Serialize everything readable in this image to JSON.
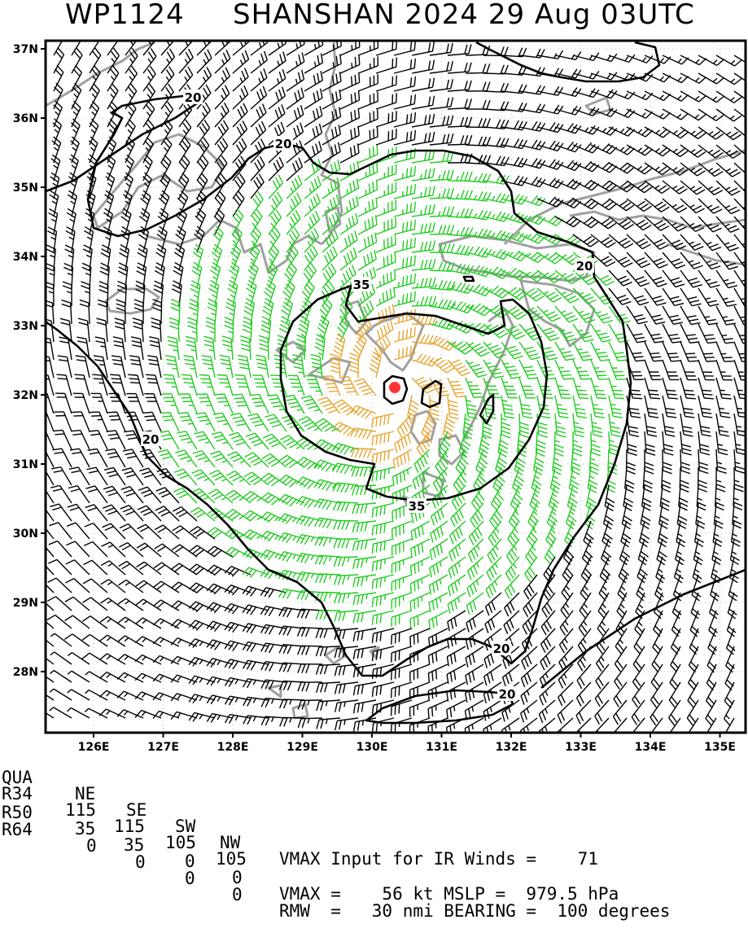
{
  "title": {
    "storm_id": "WP1124",
    "storm_line": "SHANSHAN 2024 29 Aug 03UTC"
  },
  "map": {
    "lat_labels": [
      "37N",
      "36N",
      "35N",
      "34N",
      "33N",
      "32N",
      "31N",
      "30N",
      "29N",
      "28N"
    ],
    "lon_labels": [
      "126E",
      "127E",
      "128E",
      "129E",
      "130E",
      "131E",
      "132E",
      "133E",
      "134E",
      "135E"
    ],
    "contour_labels": [
      "20",
      "20",
      "20",
      "20",
      "20",
      "20",
      "35",
      "35"
    ],
    "wind_colors": {
      "lt34": "#000000",
      "34to50": "#22cc22",
      "50to64": "#e8a530"
    },
    "coast_color": "#a0a0a0",
    "center_color": "#ff3333"
  },
  "table": {
    "headers": [
      "QUA",
      "NE",
      "SE",
      "SW",
      "NW"
    ],
    "rows": [
      {
        "label": "R34",
        "values": [
          "115",
          "115",
          "105",
          "105"
        ]
      },
      {
        "label": "R50",
        "values": [
          "35",
          "35",
          "0",
          "0"
        ]
      },
      {
        "label": "R64",
        "values": [
          "0",
          "0",
          "0",
          "0"
        ]
      }
    ]
  },
  "info": {
    "vmax_ir": "VMAX Input for IR Winds =    71",
    "vmax_mslp": "VMAX =    56 kt MSLP =  979.5 hPa",
    "rmw_bearing": "RMW  =   30 nmi BEARING =  100 degrees"
  }
}
